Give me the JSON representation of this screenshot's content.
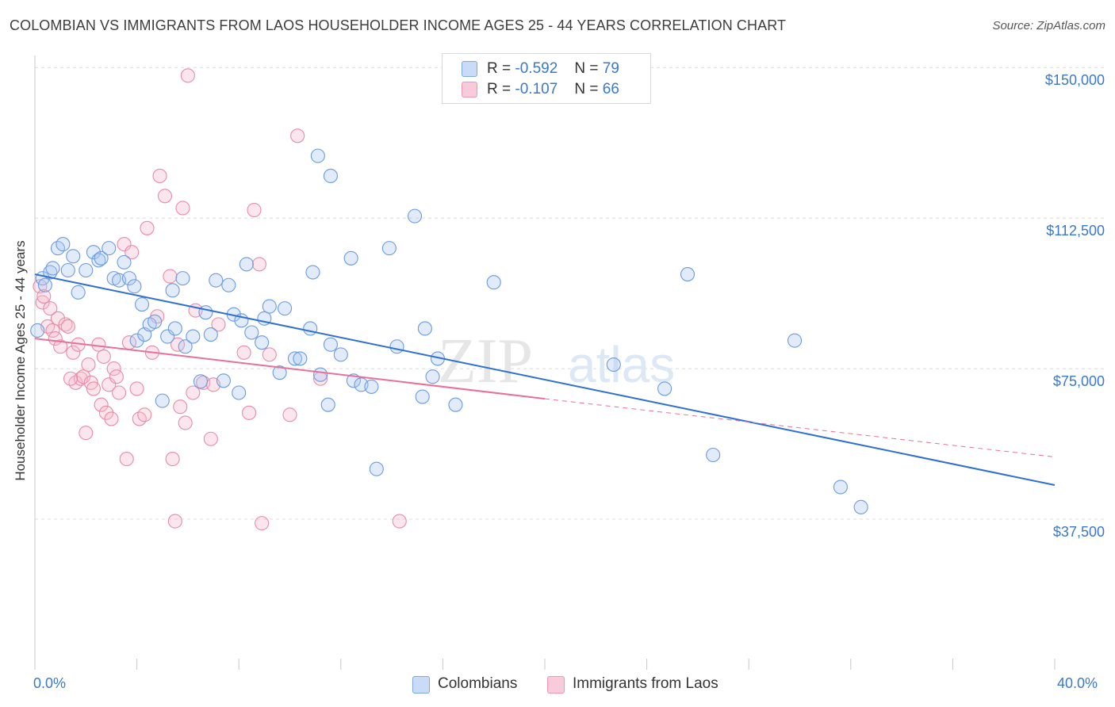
{
  "title": "COLOMBIAN VS IMMIGRANTS FROM LAOS HOUSEHOLDER INCOME AGES 25 - 44 YEARS CORRELATION CHART",
  "source": "Source: ZipAtlas.com",
  "watermark": {
    "zip": "ZIP",
    "atlas": "atlas"
  },
  "legend": {
    "r_label": "R =",
    "n_label": "N =",
    "colombians": {
      "r": "-0.592",
      "n": "79"
    },
    "laos": {
      "r": "-0.107",
      "n": "66"
    }
  },
  "chart_data": {
    "type": "scatter",
    "title": "COLOMBIAN VS IMMIGRANTS FROM LAOS HOUSEHOLDER INCOME AGES 25 - 44 YEARS CORRELATION CHART",
    "xlabel": "",
    "ylabel": "Householder Income Ages 25 - 44 years",
    "xlim": [
      0,
      40
    ],
    "ylim": [
      0,
      153000
    ],
    "x_tick_labels": [
      "0.0%",
      "40.0%"
    ],
    "y_ticks": [
      37500,
      75000,
      112500,
      150000
    ],
    "y_tick_labels": [
      "$37,500",
      "$75,000",
      "$112,500",
      "$150,000"
    ],
    "grid": true,
    "legend_position": "top-center",
    "colors": {
      "colombians": "#5b8fe0",
      "laos": "#ee8aaa",
      "blue_line": "#2d6fd4",
      "pink_line": "#e8709a"
    },
    "series": [
      {
        "name": "Colombians",
        "r": -0.592,
        "n": 79,
        "trend": {
          "x": [
            0,
            40
          ],
          "y": [
            98500,
            46000
          ]
        },
        "points": [
          [
            0.1,
            84500
          ],
          [
            0.3,
            97500
          ],
          [
            0.4,
            95800
          ],
          [
            0.6,
            99000
          ],
          [
            0.7,
            100000
          ],
          [
            0.9,
            105000
          ],
          [
            1.1,
            106000
          ],
          [
            1.3,
            99500
          ],
          [
            1.5,
            103000
          ],
          [
            1.7,
            94000
          ],
          [
            2.0,
            99500
          ],
          [
            2.3,
            104000
          ],
          [
            2.5,
            102000
          ],
          [
            2.6,
            102500
          ],
          [
            2.9,
            105000
          ],
          [
            3.1,
            97500
          ],
          [
            3.3,
            97000
          ],
          [
            3.5,
            101500
          ],
          [
            3.7,
            97500
          ],
          [
            3.9,
            95500
          ],
          [
            4.0,
            82000
          ],
          [
            4.2,
            91000
          ],
          [
            4.3,
            83500
          ],
          [
            4.5,
            86000
          ],
          [
            4.7,
            86700
          ],
          [
            5.0,
            67000
          ],
          [
            5.2,
            83000
          ],
          [
            5.4,
            94500
          ],
          [
            5.5,
            85000
          ],
          [
            5.8,
            97500
          ],
          [
            5.9,
            80500
          ],
          [
            6.2,
            83000
          ],
          [
            6.5,
            71800
          ],
          [
            6.7,
            89000
          ],
          [
            6.9,
            83500
          ],
          [
            7.1,
            97000
          ],
          [
            7.4,
            72000
          ],
          [
            7.6,
            95800
          ],
          [
            7.8,
            88500
          ],
          [
            8.0,
            69000
          ],
          [
            8.1,
            87000
          ],
          [
            8.3,
            101000
          ],
          [
            8.5,
            84000
          ],
          [
            8.9,
            81500
          ],
          [
            9.0,
            87500
          ],
          [
            9.2,
            90500
          ],
          [
            9.6,
            74000
          ],
          [
            9.8,
            90000
          ],
          [
            10.2,
            77500
          ],
          [
            10.4,
            77500
          ],
          [
            10.8,
            85000
          ],
          [
            10.9,
            99000
          ],
          [
            11.2,
            73500
          ],
          [
            11.5,
            66000
          ],
          [
            11.6,
            81000
          ],
          [
            12.0,
            78500
          ],
          [
            12.4,
            102500
          ],
          [
            12.5,
            72000
          ],
          [
            12.8,
            71000
          ],
          [
            13.2,
            70500
          ],
          [
            13.9,
            105000
          ],
          [
            14.2,
            80500
          ],
          [
            14.9,
            113000
          ],
          [
            15.2,
            68000
          ],
          [
            15.3,
            85000
          ],
          [
            15.6,
            73000
          ],
          [
            15.8,
            77500
          ],
          [
            16.5,
            66000
          ],
          [
            18.0,
            96500
          ],
          [
            11.1,
            128000
          ],
          [
            11.6,
            123000
          ],
          [
            22.7,
            76000
          ],
          [
            24.7,
            70000
          ],
          [
            25.6,
            98500
          ],
          [
            26.6,
            53500
          ],
          [
            29.8,
            82000
          ],
          [
            31.6,
            45500
          ],
          [
            32.4,
            40500
          ],
          [
            13.4,
            50000
          ]
        ]
      },
      {
        "name": "Immigrants from Laos",
        "r": -0.107,
        "n": 66,
        "trend": {
          "x": [
            0,
            20
          ],
          "y": [
            82500,
            67500
          ]
        },
        "trend_extension": {
          "x": [
            20,
            40
          ],
          "y": [
            67500,
            53000
          ]
        },
        "points": [
          [
            0.2,
            95500
          ],
          [
            0.3,
            91500
          ],
          [
            0.35,
            93000
          ],
          [
            0.5,
            85500
          ],
          [
            0.6,
            90000
          ],
          [
            0.7,
            84500
          ],
          [
            0.8,
            82500
          ],
          [
            0.9,
            87500
          ],
          [
            1.0,
            80500
          ],
          [
            1.2,
            86000
          ],
          [
            1.3,
            85500
          ],
          [
            1.5,
            79000
          ],
          [
            1.6,
            71500
          ],
          [
            1.7,
            81000
          ],
          [
            1.8,
            72500
          ],
          [
            1.9,
            73000
          ],
          [
            2.0,
            59000
          ],
          [
            2.1,
            76000
          ],
          [
            2.2,
            71500
          ],
          [
            2.3,
            70000
          ],
          [
            2.5,
            81000
          ],
          [
            2.6,
            66000
          ],
          [
            2.7,
            78000
          ],
          [
            2.8,
            64000
          ],
          [
            2.9,
            71000
          ],
          [
            3.0,
            62500
          ],
          [
            3.1,
            75000
          ],
          [
            3.2,
            73000
          ],
          [
            3.3,
            69000
          ],
          [
            3.5,
            106000
          ],
          [
            3.6,
            52500
          ],
          [
            3.7,
            81500
          ],
          [
            3.8,
            104000
          ],
          [
            4.0,
            70000
          ],
          [
            4.1,
            62500
          ],
          [
            4.3,
            63500
          ],
          [
            4.4,
            110000
          ],
          [
            4.6,
            79000
          ],
          [
            4.8,
            88000
          ],
          [
            4.9,
            123000
          ],
          [
            5.1,
            118000
          ],
          [
            5.3,
            98000
          ],
          [
            5.4,
            52500
          ],
          [
            5.5,
            37000
          ],
          [
            5.6,
            81000
          ],
          [
            5.7,
            65500
          ],
          [
            5.8,
            115000
          ],
          [
            5.9,
            61500
          ],
          [
            6.0,
            148000
          ],
          [
            6.2,
            69000
          ],
          [
            6.3,
            89500
          ],
          [
            6.6,
            71500
          ],
          [
            6.9,
            57500
          ],
          [
            7.0,
            71000
          ],
          [
            7.2,
            86000
          ],
          [
            8.2,
            79000
          ],
          [
            8.4,
            64000
          ],
          [
            8.6,
            114500
          ],
          [
            8.8,
            101000
          ],
          [
            8.9,
            36500
          ],
          [
            9.2,
            78500
          ],
          [
            10.0,
            63500
          ],
          [
            10.3,
            133000
          ],
          [
            11.2,
            72500
          ],
          [
            14.3,
            37000
          ],
          [
            1.4,
            72500
          ]
        ]
      }
    ]
  }
}
